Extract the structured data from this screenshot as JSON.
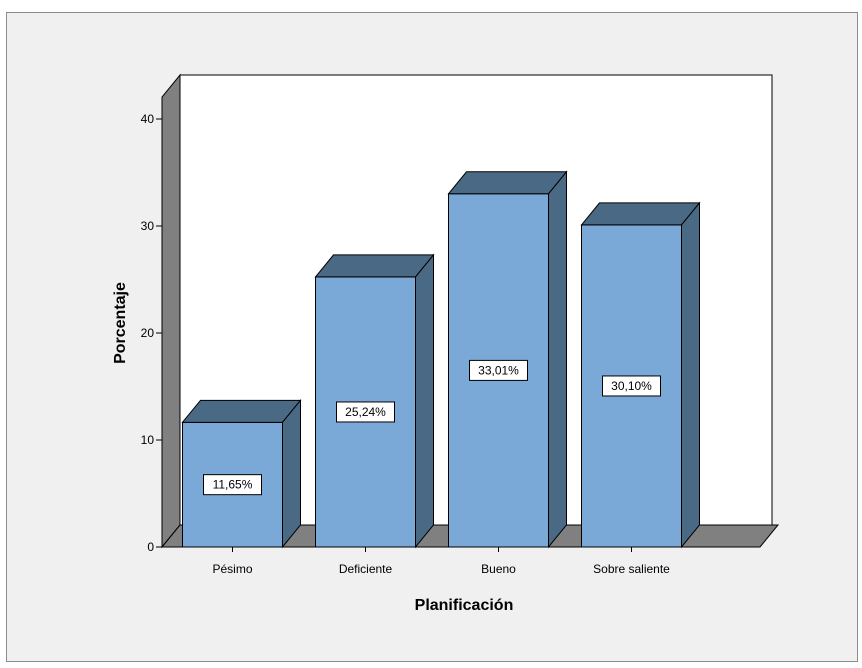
{
  "chart_data": {
    "type": "bar",
    "style": "3d",
    "categories": [
      "Pésimo",
      "Deficiente",
      "Bueno",
      "Sobre saliente"
    ],
    "values": [
      11.65,
      25.24,
      33.01,
      30.1
    ],
    "data_labels": [
      "11,65%",
      "25,24%",
      "33,01%",
      "30,10%"
    ],
    "xlabel": "Planificación",
    "ylabel": "Porcentaje",
    "ylim": [
      0,
      40
    ],
    "yticks": [
      0,
      10,
      20,
      30,
      40
    ],
    "grid": false,
    "colors": {
      "bar_front": "#7BA9D7",
      "bar_top": "#4A6984",
      "bar_side": "#4A6984",
      "floor": "#808080",
      "wall": "#808080",
      "plot_background": "#ffffff",
      "chart_background": "#f0f0f0"
    }
  }
}
